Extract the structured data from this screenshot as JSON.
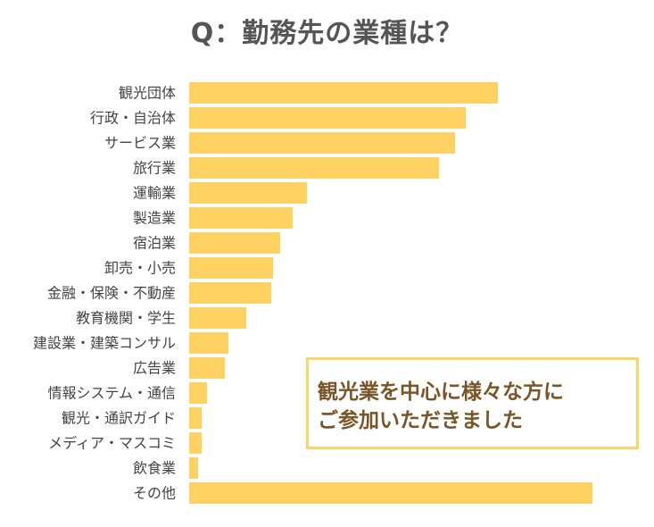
{
  "title": "Q：勤務先の業種は？",
  "chart_data": {
    "type": "bar",
    "orientation": "horizontal",
    "categories": [
      "観光団体",
      "行政・自治体",
      "サービス業",
      "旅行業",
      "運輸業",
      "製造業",
      "宿泊業",
      "卸売・小売",
      "金融・保険・不動産",
      "教育機関・学生",
      "建設業・建築コンサル",
      "広告業",
      "情報システム・通信",
      "観光・通訳ガイド",
      "メディア・マスコミ",
      "飲食業",
      "その他"
    ],
    "values": [
      346,
      310,
      298,
      280,
      132,
      116,
      102,
      94,
      92,
      64,
      44,
      40,
      20,
      14,
      14,
      10,
      452
    ],
    "bar_color": "#fdd262",
    "grid": false,
    "legend": "none"
  },
  "callout": {
    "lines": [
      "観光業を中心に様々な方に",
      "ご参加いただきました"
    ],
    "border_color": "#f7d66a",
    "text_color": "#7a5526"
  }
}
